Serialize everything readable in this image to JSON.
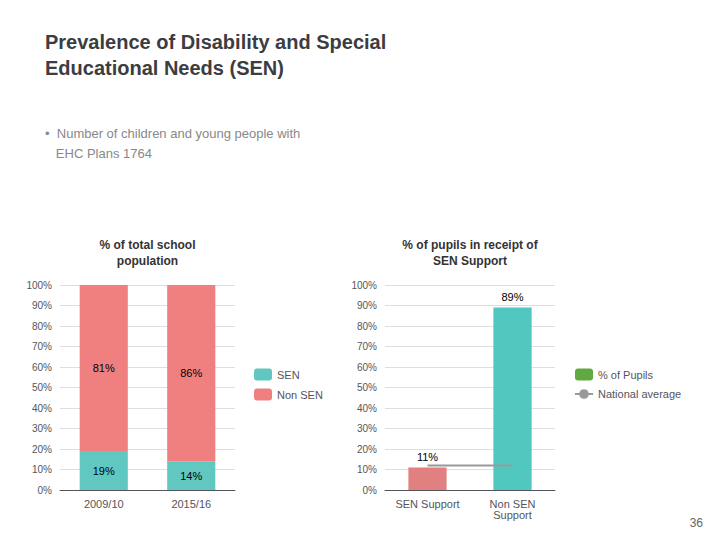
{
  "title": "Prevalence of Disability and Special\nEducational Needs (SEN)",
  "subtitle": "•  Number of children and young people with\n   EHC Plans 1764",
  "annotations": [
    "36"
  ],
  "chart_data": [
    {
      "type": "bar",
      "title": "% of total school\npopulation",
      "categories": [
        "2009/10",
        "2015/16"
      ],
      "stacked": true,
      "data_labels": true,
      "grid": true,
      "legend": "right",
      "ylim": [
        0,
        100
      ],
      "yticks": [
        {
          "value": 0,
          "label": "0%"
        },
        {
          "value": 10,
          "label": "10%"
        },
        {
          "value": 20,
          "label": "20%"
        },
        {
          "value": 30,
          "label": "30%"
        },
        {
          "value": 40,
          "label": "40%"
        },
        {
          "value": 50,
          "label": "50%"
        },
        {
          "value": 60,
          "label": "60%"
        },
        {
          "value": 70,
          "label": "70%"
        },
        {
          "value": 80,
          "label": "80%"
        },
        {
          "value": 90,
          "label": "90%"
        },
        {
          "value": 100,
          "label": "100%"
        }
      ],
      "series": [
        {
          "name": "SEN",
          "color": "#60c8c0",
          "values": [
            19,
            14
          ],
          "value_labels": [
            "19%",
            "14%"
          ]
        },
        {
          "name": "Non SEN",
          "color": "#f08080",
          "values": [
            81,
            86
          ],
          "value_labels": [
            "81%",
            "86%"
          ]
        }
      ]
    },
    {
      "type": "bar",
      "title": "% of pupils in receipt of\nSEN Support",
      "categories": [
        "SEN Support",
        "Non SEN\nSupport"
      ],
      "grid": true,
      "legend": "right",
      "ylim": [
        0,
        100
      ],
      "yticks": [
        {
          "value": 0,
          "label": "0%"
        },
        {
          "value": 10,
          "label": "10%"
        },
        {
          "value": 20,
          "label": "20%"
        },
        {
          "value": 30,
          "label": "30%"
        },
        {
          "value": 40,
          "label": "40%"
        },
        {
          "value": 50,
          "label": "50%"
        },
        {
          "value": 60,
          "label": "60%"
        },
        {
          "value": 70,
          "label": "70%"
        },
        {
          "value": 80,
          "label": "80%"
        },
        {
          "value": 90,
          "label": "90%"
        },
        {
          "value": 100,
          "label": "100%"
        }
      ],
      "series": [
        {
          "name": "% of Pupils",
          "type": "bar",
          "color": "#60a840",
          "colors": [
            "#e08080",
            "#50c8c0"
          ],
          "values": [
            11,
            89
          ],
          "value_labels": [
            "11%",
            "89%"
          ],
          "data_labels": true
        },
        {
          "name": "National average",
          "type": "line",
          "color": "#999999",
          "values": [
            12,
            12
          ]
        }
      ]
    }
  ]
}
